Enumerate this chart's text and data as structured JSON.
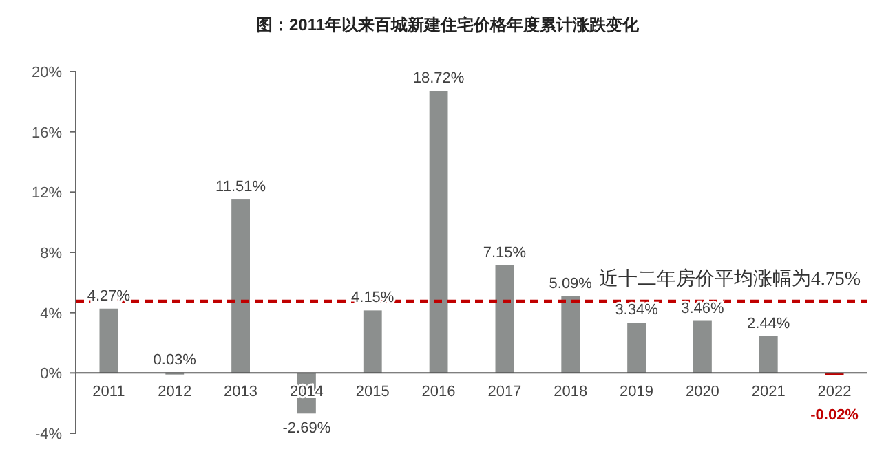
{
  "chart_data": {
    "type": "bar",
    "title": "图：2011年以来百城新建住宅价格年度累计涨跌变化",
    "categories": [
      "2011",
      "2012",
      "2013",
      "2014",
      "2015",
      "2016",
      "2017",
      "2018",
      "2019",
      "2020",
      "2021",
      "2022"
    ],
    "values": [
      4.27,
      0.03,
      11.51,
      -2.69,
      4.15,
      18.72,
      7.15,
      5.09,
      3.34,
      3.46,
      2.44,
      -0.02
    ],
    "value_labels": [
      "4.27%",
      "0.03%",
      "11.51%",
      "-2.69%",
      "4.15%",
      "18.72%",
      "7.15%",
      "5.09%",
      "3.34%",
      "3.46%",
      "2.44%",
      "-0.02%"
    ],
    "colors": [
      "#8c8f8e",
      "#8c8f8e",
      "#8c8f8e",
      "#8c8f8e",
      "#8c8f8e",
      "#8c8f8e",
      "#8c8f8e",
      "#8c8f8e",
      "#8c8f8e",
      "#8c8f8e",
      "#8c8f8e",
      "#c00000"
    ],
    "ylim": [
      -4,
      20
    ],
    "yticks": [
      {
        "value": -4,
        "label": "-4%"
      },
      {
        "value": 0,
        "label": "0%"
      },
      {
        "value": 4,
        "label": "4%"
      },
      {
        "value": 8,
        "label": "8%"
      },
      {
        "value": 12,
        "label": "12%"
      },
      {
        "value": 16,
        "label": "16%"
      },
      {
        "value": 20,
        "label": "20%"
      }
    ],
    "ref_lines": [
      {
        "axis": "y",
        "value": 4.75,
        "label": "近十二年房价平均涨幅为4.75%",
        "color": "#c00000",
        "line_style": "dashed"
      }
    ],
    "grid": false
  }
}
